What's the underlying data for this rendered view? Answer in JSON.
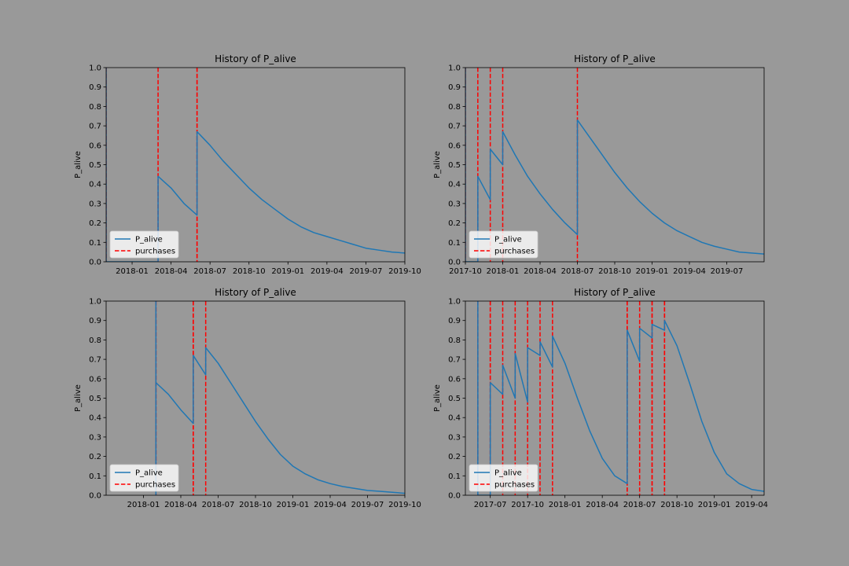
{
  "chart_data": [
    {
      "type": "line",
      "title": "History of P_alive",
      "ylabel": "P_alive",
      "legend": "lower left",
      "xlim": [
        "2017-11",
        "2019-10"
      ],
      "ylim": [
        0,
        1
      ],
      "xticks": [
        "2018-01",
        "2018-04",
        "2018-07",
        "2018-10",
        "2019-01",
        "2019-04",
        "2019-07",
        "2019-10"
      ],
      "yticks": [
        {
          "value": 0,
          "label": "0.0"
        },
        0.1,
        0.2,
        0.3,
        0.4,
        0.5,
        0.6,
        0.7,
        0.8,
        0.9,
        {
          "value": 1,
          "label": "1.0"
        }
      ],
      "x": [
        "2017-11",
        "2017-11",
        "2018-03",
        "2018-03",
        "2018-04",
        "2018-05",
        "2018-06",
        "2018-06",
        "2018-06",
        "2018-07",
        "2018-08",
        "2018-09",
        "2018-10",
        "2018-11",
        "2018-12",
        "2019-01",
        "2019-02",
        "2019-03",
        "2019-04",
        "2019-05",
        "2019-06",
        "2019-07",
        "2019-08",
        "2019-09",
        "2019-10"
      ],
      "series": [
        {
          "name": "P_alive",
          "color": "#1f77b4",
          "values": [
            1.0,
            0.0,
            0.0,
            0.44,
            0.38,
            0.3,
            0.24,
            0.58,
            0.67,
            0.6,
            0.52,
            0.45,
            0.38,
            0.32,
            0.27,
            0.22,
            0.18,
            0.15,
            0.13,
            0.11,
            0.09,
            0.07,
            0.06,
            0.05,
            0.045
          ]
        }
      ],
      "vlines": {
        "name": "purchases",
        "color": "#ff0000",
        "x": [
          "2017-11",
          "2018-03",
          "2018-06",
          "2018-06"
        ]
      }
    },
    {
      "type": "line",
      "title": "History of P_alive",
      "ylabel": "P_alive",
      "legend": "lower left",
      "xlim": [
        "2017-10",
        "2019-10"
      ],
      "ylim": [
        0,
        1
      ],
      "xticks": [
        "2017-10",
        "2018-01",
        "2018-04",
        "2018-07",
        "2018-10",
        "2019-01",
        "2019-04",
        "2019-07"
      ],
      "yticks": [
        {
          "value": 0,
          "label": "0.0"
        },
        0.1,
        0.2,
        0.3,
        0.4,
        0.5,
        0.6,
        0.7,
        0.8,
        0.9,
        {
          "value": 1,
          "label": "1.0"
        }
      ],
      "x": [
        "2017-10",
        "2017-10",
        "2017-11",
        "2017-11",
        "2017-12",
        "2017-12",
        "2018-01",
        "2018-01",
        "2018-02",
        "2018-03",
        "2018-04",
        "2018-05",
        "2018-06",
        "2018-07",
        "2018-07",
        "2018-08",
        "2018-09",
        "2018-10",
        "2018-11",
        "2018-12",
        "2019-01",
        "2019-02",
        "2019-03",
        "2019-04",
        "2019-05",
        "2019-06",
        "2019-07",
        "2019-08",
        "2019-09",
        "2019-10"
      ],
      "series": [
        {
          "name": "P_alive",
          "color": "#1f77b4",
          "values": [
            1.0,
            0.0,
            0.0,
            0.44,
            0.32,
            0.58,
            0.5,
            0.67,
            0.55,
            0.44,
            0.35,
            0.27,
            0.2,
            0.14,
            0.73,
            0.64,
            0.55,
            0.46,
            0.38,
            0.31,
            0.25,
            0.2,
            0.16,
            0.13,
            0.1,
            0.08,
            0.065,
            0.05,
            0.045,
            0.04
          ]
        }
      ],
      "vlines": {
        "name": "purchases",
        "color": "#ff0000",
        "x": [
          "2017-10",
          "2017-11",
          "2017-12",
          "2018-01",
          "2018-07"
        ]
      }
    },
    {
      "type": "line",
      "title": "History of P_alive",
      "ylabel": "P_alive",
      "legend": "lower left",
      "xlim": [
        "2017-10",
        "2019-10"
      ],
      "ylim": [
        0,
        1
      ],
      "xticks": [
        "2018-01",
        "2018-04",
        "2018-07",
        "2018-10",
        "2019-01",
        "2019-04",
        "2019-07",
        "2019-10"
      ],
      "yticks": [
        {
          "value": 0,
          "label": "0.0"
        },
        0.1,
        0.2,
        0.3,
        0.4,
        0.5,
        0.6,
        0.7,
        0.8,
        0.9,
        {
          "value": 1,
          "label": "1.0"
        }
      ],
      "x": [
        "2018-02",
        "2018-02",
        "2018-02",
        "2018-02",
        "2018-03",
        "2018-04",
        "2018-05",
        "2018-05",
        "2018-05",
        "2018-06",
        "2018-06",
        "2018-07",
        "2018-08",
        "2018-09",
        "2018-10",
        "2018-11",
        "2018-12",
        "2019-01",
        "2019-02",
        "2019-03",
        "2019-04",
        "2019-05",
        "2019-06",
        "2019-07",
        "2019-08",
        "2019-09",
        "2019-10"
      ],
      "series": [
        {
          "name": "P_alive",
          "color": "#1f77b4",
          "values": [
            1.0,
            0.0,
            0.44,
            0.58,
            0.52,
            0.44,
            0.37,
            0.66,
            0.72,
            0.62,
            0.76,
            0.68,
            0.58,
            0.48,
            0.38,
            0.29,
            0.21,
            0.15,
            0.11,
            0.08,
            0.06,
            0.045,
            0.035,
            0.025,
            0.02,
            0.015,
            0.01
          ]
        }
      ],
      "vlines": {
        "name": "purchases",
        "color": "#ff0000",
        "x": [
          "2018-02",
          "2018-02",
          "2018-02",
          "2018-05",
          "2018-05",
          "2018-06"
        ]
      }
    },
    {
      "type": "line",
      "title": "History of P_alive",
      "ylabel": "P_alive",
      "legend": "lower left",
      "xlim": [
        "2017-05",
        "2019-05"
      ],
      "ylim": [
        0,
        1
      ],
      "xticks": [
        "2017-07",
        "2017-10",
        "2018-01",
        "2018-04",
        "2018-07",
        "2018-10",
        "2019-01",
        "2019-04"
      ],
      "yticks": [
        {
          "value": 0,
          "label": "0.0"
        },
        0.1,
        0.2,
        0.3,
        0.4,
        0.5,
        0.6,
        0.7,
        0.8,
        0.9,
        {
          "value": 1,
          "label": "1.0"
        }
      ],
      "x": [
        "2017-06",
        "2017-06",
        "2017-07",
        "2017-07",
        "2017-07",
        "2017-08",
        "2017-08",
        "2017-09",
        "2017-09",
        "2017-10",
        "2017-10",
        "2017-11",
        "2017-11",
        "2017-12",
        "2017-12",
        "2018-01",
        "2018-02",
        "2018-03",
        "2018-04",
        "2018-05",
        "2018-06",
        "2018-06",
        "2018-07",
        "2018-07",
        "2018-08",
        "2018-08",
        "2018-09",
        "2018-09",
        "2018-10",
        "2018-11",
        "2018-12",
        "2019-01",
        "2019-02",
        "2019-03",
        "2019-04",
        "2019-05"
      ],
      "series": [
        {
          "name": "P_alive",
          "color": "#1f77b4",
          "values": [
            1.0,
            0.0,
            0.0,
            0.44,
            0.58,
            0.52,
            0.67,
            0.5,
            0.73,
            0.48,
            0.76,
            0.72,
            0.79,
            0.66,
            0.82,
            0.68,
            0.5,
            0.33,
            0.19,
            0.1,
            0.06,
            0.85,
            0.69,
            0.86,
            0.81,
            0.88,
            0.85,
            0.9,
            0.77,
            0.58,
            0.38,
            0.22,
            0.11,
            0.06,
            0.03,
            0.02
          ]
        }
      ],
      "vlines": {
        "name": "purchases",
        "color": "#ff0000",
        "x": [
          "2017-06",
          "2017-07",
          "2017-07",
          "2017-08",
          "2017-09",
          "2017-10",
          "2017-11",
          "2017-12",
          "2018-06",
          "2018-06",
          "2018-07",
          "2018-08",
          "2018-08",
          "2018-09",
          "2018-09"
        ]
      }
    }
  ]
}
